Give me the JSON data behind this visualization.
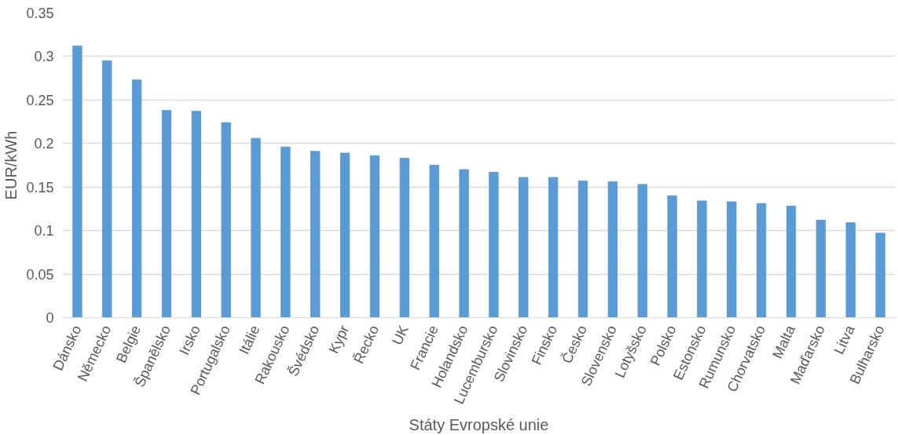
{
  "chart_data": {
    "type": "bar",
    "xlabel": "Státy Evropské unie",
    "ylabel": "EUR/kWh",
    "categories": [
      "Dánsko",
      "Německo",
      "Belgie",
      "Španělsko",
      "Irsko",
      "Portugalsko",
      "Itálie",
      "Rakousko",
      "Švédsko",
      "Kypr",
      "Řecko",
      "UK",
      "Francie",
      "Holandsko",
      "Lucembursko",
      "Slovinsko",
      "Finsko",
      "Česko",
      "Slovensko",
      "Lotyšsko",
      "Polsko",
      "Estonsko",
      "Rumunsko",
      "Chorvatsko",
      "Malta",
      "Maďarsko",
      "Litva",
      "Bulharsko"
    ],
    "values": [
      0.312,
      0.295,
      0.273,
      0.238,
      0.237,
      0.224,
      0.206,
      0.196,
      0.191,
      0.189,
      0.186,
      0.183,
      0.175,
      0.17,
      0.167,
      0.161,
      0.161,
      0.157,
      0.156,
      0.153,
      0.14,
      0.134,
      0.133,
      0.131,
      0.128,
      0.112,
      0.109,
      0.097
    ],
    "color": "#5b9bd5",
    "ylim": [
      0,
      0.35
    ],
    "yticks": [
      0,
      0.05,
      0.1,
      0.15,
      0.2,
      0.25,
      0.3,
      0.35
    ],
    "grid": "y"
  }
}
